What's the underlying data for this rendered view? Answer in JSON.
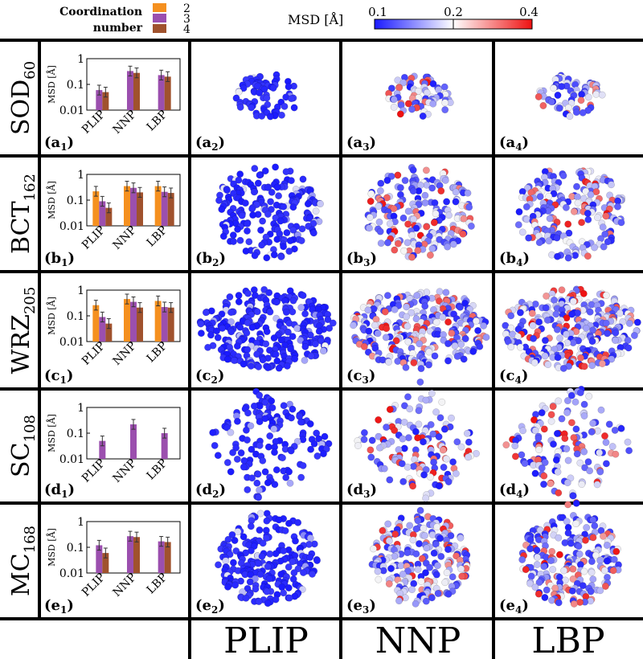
{
  "legend": {
    "title_line1": "Coordination",
    "title_line2": "number",
    "items": [
      {
        "label": "2",
        "color": "#f5901f"
      },
      {
        "label": "3",
        "color": "#9b4fae"
      },
      {
        "label": "4",
        "color": "#a0522d"
      }
    ]
  },
  "colorbar": {
    "label": "MSD [Å]",
    "ticks": [
      "0.1",
      "0.2",
      "0.4"
    ],
    "colors": [
      "#1a1aff",
      "#ffffff",
      "#ee1111"
    ]
  },
  "rows": [
    {
      "name": "SOD",
      "subscript": "60",
      "panel_letter": "a"
    },
    {
      "name": "BCT",
      "subscript": "162",
      "panel_letter": "b"
    },
    {
      "name": "WRZ",
      "subscript": "205",
      "panel_letter": "c"
    },
    {
      "name": "SC",
      "subscript": "108",
      "panel_letter": "d"
    },
    {
      "name": "MC",
      "subscript": "168",
      "panel_letter": "e"
    }
  ],
  "columns": [
    "PLIP",
    "NNP",
    "LBP"
  ],
  "bar_axis": {
    "ylabel": "MSD [Å]",
    "yticks": [
      "1",
      "0.1",
      "0.01"
    ],
    "categories": [
      "PLIP",
      "NNP",
      "LBP"
    ]
  },
  "chart_data": [
    {
      "type": "bar",
      "panel": "a1",
      "scale": "log",
      "ylim": [
        0.01,
        1
      ],
      "categories": [
        "PLIP",
        "NNP",
        "LBP"
      ],
      "series": [
        {
          "name": "3",
          "values": [
            0.06,
            0.33,
            0.23
          ]
        },
        {
          "name": "4",
          "values": [
            0.05,
            0.28,
            0.2
          ]
        }
      ]
    },
    {
      "type": "bar",
      "panel": "b1",
      "scale": "log",
      "ylim": [
        0.01,
        1
      ],
      "categories": [
        "PLIP",
        "NNP",
        "LBP"
      ],
      "series": [
        {
          "name": "2",
          "values": [
            0.22,
            0.35,
            0.35
          ]
        },
        {
          "name": "3",
          "values": [
            0.09,
            0.3,
            0.21
          ]
        },
        {
          "name": "4",
          "values": [
            0.05,
            0.2,
            0.19
          ]
        }
      ]
    },
    {
      "type": "bar",
      "panel": "c1",
      "scale": "log",
      "ylim": [
        0.01,
        1
      ],
      "categories": [
        "PLIP",
        "NNP",
        "LBP"
      ],
      "series": [
        {
          "name": "2",
          "values": [
            0.26,
            0.45,
            0.38
          ]
        },
        {
          "name": "3",
          "values": [
            0.09,
            0.35,
            0.22
          ]
        },
        {
          "name": "4",
          "values": [
            0.05,
            0.21,
            0.21
          ]
        }
      ]
    },
    {
      "type": "bar",
      "panel": "d1",
      "scale": "log",
      "ylim": [
        0.01,
        1
      ],
      "categories": [
        "PLIP",
        "NNP",
        "LBP"
      ],
      "series": [
        {
          "name": "3",
          "values": [
            0.05,
            0.22,
            0.1
          ]
        }
      ]
    },
    {
      "type": "bar",
      "panel": "e1",
      "scale": "log",
      "ylim": [
        0.01,
        1
      ],
      "categories": [
        "PLIP",
        "NNP",
        "LBP"
      ],
      "series": [
        {
          "name": "3",
          "values": [
            0.12,
            0.27,
            0.17
          ]
        },
        {
          "name": "4",
          "values": [
            0.06,
            0.25,
            0.16
          ]
        }
      ]
    }
  ]
}
